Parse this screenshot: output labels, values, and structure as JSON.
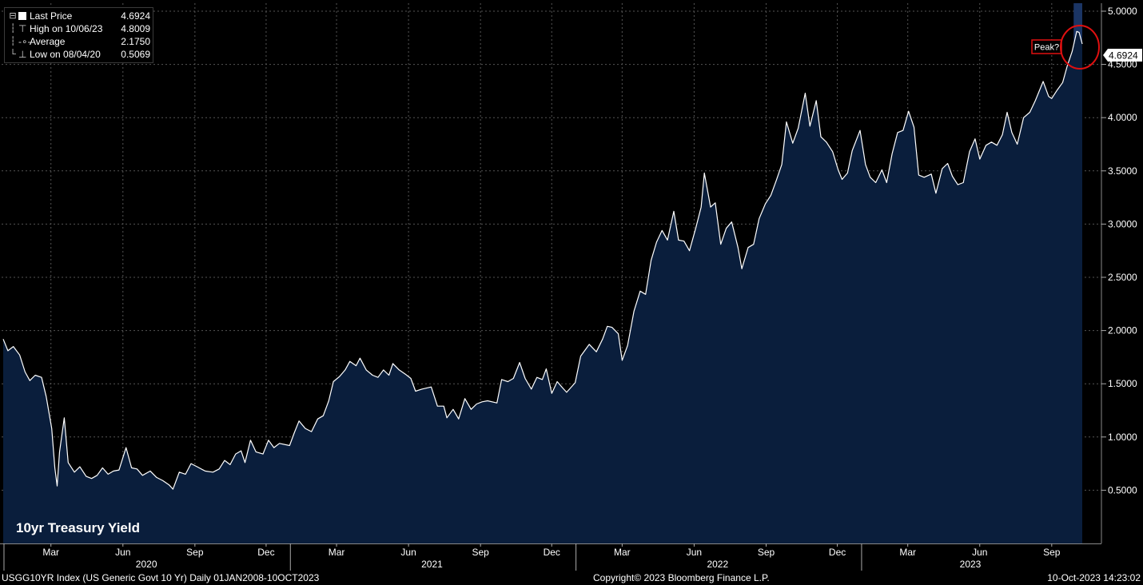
{
  "legend": {
    "last_price_label": "Last Price",
    "last_price_value": "4.6924",
    "high_label": "High on 10/06/23",
    "high_value": "4.8009",
    "average_label": "Average",
    "average_value": "2.1750",
    "low_label": "Low on 08/04/20",
    "low_value": "0.5069"
  },
  "footer": {
    "left": "USGG10YR Index (US Generic Govt 10 Yr)  Daily 01JAN2008-10OCT2023",
    "center": "Copyright© 2023 Bloomberg Finance L.P.",
    "right": "10-Oct-2023 14:23:02"
  },
  "colors": {
    "background": "#000000",
    "area_fill": "#0a1e3c",
    "line": "#ffffff",
    "grid": "#555555",
    "highlight_band": "#1b3564",
    "annotation": "#e01010"
  },
  "chart_data": {
    "type": "area",
    "title": "10yr Treasury Yield",
    "last_price_tag": "4.6924",
    "annotation": "Peak?",
    "xlim": [
      "2019-12-31",
      "2023-10-10"
    ],
    "ylim": [
      0.0,
      5.1
    ],
    "y_ticks": [
      "0.5000",
      "1.0000",
      "1.5000",
      "2.0000",
      "2.5000",
      "3.0000",
      "3.5000",
      "4.0000",
      "4.5000",
      "5.0000"
    ],
    "grid": true,
    "month_ticks": [
      {
        "date": "2020-03-01",
        "label": "Mar"
      },
      {
        "date": "2020-06-01",
        "label": "Jun"
      },
      {
        "date": "2020-09-01",
        "label": "Sep"
      },
      {
        "date": "2020-12-01",
        "label": "Dec"
      },
      {
        "date": "2021-03-01",
        "label": "Mar"
      },
      {
        "date": "2021-06-01",
        "label": "Jun"
      },
      {
        "date": "2021-09-01",
        "label": "Sep"
      },
      {
        "date": "2021-12-01",
        "label": "Dec"
      },
      {
        "date": "2022-03-01",
        "label": "Mar"
      },
      {
        "date": "2022-06-01",
        "label": "Jun"
      },
      {
        "date": "2022-09-01",
        "label": "Sep"
      },
      {
        "date": "2022-12-01",
        "label": "Dec"
      },
      {
        "date": "2023-03-01",
        "label": "Mar"
      },
      {
        "date": "2023-06-01",
        "label": "Jun"
      },
      {
        "date": "2023-09-01",
        "label": "Sep"
      }
    ],
    "year_ticks": [
      {
        "label": "2020",
        "center": "2020-07-01"
      },
      {
        "label": "2021",
        "center": "2021-07-01"
      },
      {
        "label": "2022",
        "center": "2022-07-01"
      },
      {
        "label": "2023",
        "center": "2023-05-20"
      }
    ],
    "year_boundaries": [
      "2020-01-01",
      "2021-01-01",
      "2022-01-01",
      "2023-01-01"
    ],
    "highlight_range": [
      "2023-09-29",
      "2023-10-10"
    ],
    "series": [
      {
        "name": "Last Price",
        "points": [
          [
            "2019-12-31",
            1.92
          ],
          [
            "2020-01-06",
            1.81
          ],
          [
            "2020-01-13",
            1.85
          ],
          [
            "2020-01-21",
            1.77
          ],
          [
            "2020-01-28",
            1.61
          ],
          [
            "2020-02-03",
            1.53
          ],
          [
            "2020-02-10",
            1.58
          ],
          [
            "2020-02-18",
            1.56
          ],
          [
            "2020-02-24",
            1.38
          ],
          [
            "2020-03-02",
            1.08
          ],
          [
            "2020-03-06",
            0.71
          ],
          [
            "2020-03-09",
            0.54
          ],
          [
            "2020-03-12",
            0.86
          ],
          [
            "2020-03-18",
            1.18
          ],
          [
            "2020-03-23",
            0.76
          ],
          [
            "2020-03-31",
            0.67
          ],
          [
            "2020-04-07",
            0.72
          ],
          [
            "2020-04-15",
            0.63
          ],
          [
            "2020-04-22",
            0.61
          ],
          [
            "2020-04-29",
            0.64
          ],
          [
            "2020-05-06",
            0.71
          ],
          [
            "2020-05-13",
            0.65
          ],
          [
            "2020-05-20",
            0.68
          ],
          [
            "2020-05-27",
            0.69
          ],
          [
            "2020-06-05",
            0.9
          ],
          [
            "2020-06-12",
            0.71
          ],
          [
            "2020-06-19",
            0.7
          ],
          [
            "2020-06-26",
            0.64
          ],
          [
            "2020-07-06",
            0.68
          ],
          [
            "2020-07-14",
            0.62
          ],
          [
            "2020-07-22",
            0.59
          ],
          [
            "2020-07-30",
            0.55
          ],
          [
            "2020-08-04",
            0.51
          ],
          [
            "2020-08-12",
            0.67
          ],
          [
            "2020-08-20",
            0.65
          ],
          [
            "2020-08-27",
            0.75
          ],
          [
            "2020-09-04",
            0.72
          ],
          [
            "2020-09-14",
            0.68
          ],
          [
            "2020-09-24",
            0.67
          ],
          [
            "2020-10-02",
            0.7
          ],
          [
            "2020-10-09",
            0.78
          ],
          [
            "2020-10-16",
            0.74
          ],
          [
            "2020-10-23",
            0.84
          ],
          [
            "2020-10-30",
            0.87
          ],
          [
            "2020-11-04",
            0.76
          ],
          [
            "2020-11-11",
            0.97
          ],
          [
            "2020-11-18",
            0.86
          ],
          [
            "2020-11-27",
            0.84
          ],
          [
            "2020-12-04",
            0.97
          ],
          [
            "2020-12-11",
            0.9
          ],
          [
            "2020-12-18",
            0.94
          ],
          [
            "2020-12-31",
            0.92
          ],
          [
            "2021-01-06",
            1.04
          ],
          [
            "2021-01-12",
            1.15
          ],
          [
            "2021-01-20",
            1.08
          ],
          [
            "2021-01-28",
            1.05
          ],
          [
            "2021-02-05",
            1.17
          ],
          [
            "2021-02-12",
            1.2
          ],
          [
            "2021-02-19",
            1.34
          ],
          [
            "2021-02-25",
            1.52
          ],
          [
            "2021-03-05",
            1.57
          ],
          [
            "2021-03-12",
            1.63
          ],
          [
            "2021-03-18",
            1.71
          ],
          [
            "2021-03-26",
            1.67
          ],
          [
            "2021-03-31",
            1.74
          ],
          [
            "2021-04-08",
            1.63
          ],
          [
            "2021-04-16",
            1.58
          ],
          [
            "2021-04-23",
            1.56
          ],
          [
            "2021-04-30",
            1.63
          ],
          [
            "2021-05-07",
            1.58
          ],
          [
            "2021-05-12",
            1.69
          ],
          [
            "2021-05-20",
            1.63
          ],
          [
            "2021-05-28",
            1.59
          ],
          [
            "2021-06-04",
            1.55
          ],
          [
            "2021-06-10",
            1.43
          ],
          [
            "2021-06-18",
            1.45
          ],
          [
            "2021-06-30",
            1.47
          ],
          [
            "2021-07-08",
            1.29
          ],
          [
            "2021-07-16",
            1.29
          ],
          [
            "2021-07-20",
            1.18
          ],
          [
            "2021-07-28",
            1.26
          ],
          [
            "2021-08-04",
            1.17
          ],
          [
            "2021-08-12",
            1.36
          ],
          [
            "2021-08-20",
            1.26
          ],
          [
            "2021-08-27",
            1.31
          ],
          [
            "2021-09-03",
            1.33
          ],
          [
            "2021-09-10",
            1.34
          ],
          [
            "2021-09-22",
            1.32
          ],
          [
            "2021-09-28",
            1.54
          ],
          [
            "2021-10-06",
            1.52
          ],
          [
            "2021-10-13",
            1.55
          ],
          [
            "2021-10-21",
            1.7
          ],
          [
            "2021-10-28",
            1.55
          ],
          [
            "2021-11-05",
            1.45
          ],
          [
            "2021-11-12",
            1.56
          ],
          [
            "2021-11-19",
            1.54
          ],
          [
            "2021-11-24",
            1.64
          ],
          [
            "2021-12-01",
            1.41
          ],
          [
            "2021-12-08",
            1.52
          ],
          [
            "2021-12-15",
            1.46
          ],
          [
            "2021-12-20",
            1.42
          ],
          [
            "2021-12-31",
            1.51
          ],
          [
            "2022-01-07",
            1.76
          ],
          [
            "2022-01-18",
            1.87
          ],
          [
            "2022-01-27",
            1.8
          ],
          [
            "2022-02-04",
            1.92
          ],
          [
            "2022-02-10",
            2.04
          ],
          [
            "2022-02-16",
            2.03
          ],
          [
            "2022-02-24",
            1.97
          ],
          [
            "2022-03-01",
            1.72
          ],
          [
            "2022-03-08",
            1.86
          ],
          [
            "2022-03-16",
            2.18
          ],
          [
            "2022-03-24",
            2.37
          ],
          [
            "2022-03-31",
            2.34
          ],
          [
            "2022-04-07",
            2.66
          ],
          [
            "2022-04-14",
            2.83
          ],
          [
            "2022-04-21",
            2.94
          ],
          [
            "2022-04-28",
            2.85
          ],
          [
            "2022-05-06",
            3.12
          ],
          [
            "2022-05-12",
            2.85
          ],
          [
            "2022-05-19",
            2.84
          ],
          [
            "2022-05-26",
            2.75
          ],
          [
            "2022-06-03",
            2.96
          ],
          [
            "2022-06-10",
            3.16
          ],
          [
            "2022-06-14",
            3.48
          ],
          [
            "2022-06-22",
            3.16
          ],
          [
            "2022-06-28",
            3.2
          ],
          [
            "2022-07-05",
            2.81
          ],
          [
            "2022-07-12",
            2.96
          ],
          [
            "2022-07-19",
            3.02
          ],
          [
            "2022-07-27",
            2.78
          ],
          [
            "2022-08-01",
            2.58
          ],
          [
            "2022-08-09",
            2.78
          ],
          [
            "2022-08-16",
            2.81
          ],
          [
            "2022-08-23",
            3.05
          ],
          [
            "2022-08-31",
            3.19
          ],
          [
            "2022-09-07",
            3.27
          ],
          [
            "2022-09-14",
            3.41
          ],
          [
            "2022-09-21",
            3.56
          ],
          [
            "2022-09-27",
            3.96
          ],
          [
            "2022-10-05",
            3.76
          ],
          [
            "2022-10-12",
            3.9
          ],
          [
            "2022-10-21",
            4.23
          ],
          [
            "2022-10-27",
            3.92
          ],
          [
            "2022-11-04",
            4.16
          ],
          [
            "2022-11-10",
            3.82
          ],
          [
            "2022-11-17",
            3.77
          ],
          [
            "2022-11-25",
            3.68
          ],
          [
            "2022-12-02",
            3.51
          ],
          [
            "2022-12-07",
            3.42
          ],
          [
            "2022-12-14",
            3.48
          ],
          [
            "2022-12-20",
            3.69
          ],
          [
            "2022-12-30",
            3.88
          ],
          [
            "2023-01-06",
            3.56
          ],
          [
            "2023-01-12",
            3.44
          ],
          [
            "2023-01-19",
            3.39
          ],
          [
            "2023-01-27",
            3.51
          ],
          [
            "2023-02-02",
            3.39
          ],
          [
            "2023-02-09",
            3.66
          ],
          [
            "2023-02-16",
            3.86
          ],
          [
            "2023-02-23",
            3.88
          ],
          [
            "2023-03-02",
            4.06
          ],
          [
            "2023-03-09",
            3.91
          ],
          [
            "2023-03-15",
            3.46
          ],
          [
            "2023-03-22",
            3.44
          ],
          [
            "2023-03-31",
            3.47
          ],
          [
            "2023-04-06",
            3.29
          ],
          [
            "2023-04-14",
            3.52
          ],
          [
            "2023-04-21",
            3.57
          ],
          [
            "2023-04-27",
            3.45
          ],
          [
            "2023-05-04",
            3.37
          ],
          [
            "2023-05-11",
            3.39
          ],
          [
            "2023-05-19",
            3.68
          ],
          [
            "2023-05-26",
            3.8
          ],
          [
            "2023-06-01",
            3.61
          ],
          [
            "2023-06-09",
            3.74
          ],
          [
            "2023-06-16",
            3.77
          ],
          [
            "2023-06-23",
            3.74
          ],
          [
            "2023-06-30",
            3.84
          ],
          [
            "2023-07-06",
            4.05
          ],
          [
            "2023-07-12",
            3.86
          ],
          [
            "2023-07-19",
            3.75
          ],
          [
            "2023-07-27",
            4.0
          ],
          [
            "2023-08-04",
            4.05
          ],
          [
            "2023-08-11",
            4.16
          ],
          [
            "2023-08-21",
            4.34
          ],
          [
            "2023-08-28",
            4.2
          ],
          [
            "2023-09-01",
            4.18
          ],
          [
            "2023-09-08",
            4.26
          ],
          [
            "2023-09-15",
            4.33
          ],
          [
            "2023-09-21",
            4.49
          ],
          [
            "2023-09-27",
            4.62
          ],
          [
            "2023-10-03",
            4.81
          ],
          [
            "2023-10-06",
            4.8
          ],
          [
            "2023-10-10",
            4.6924
          ]
        ]
      }
    ]
  }
}
